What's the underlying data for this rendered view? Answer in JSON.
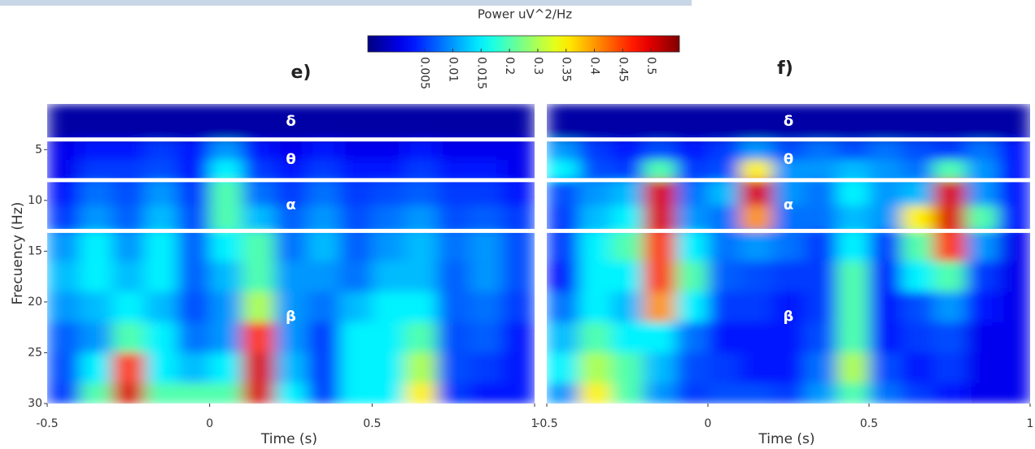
{
  "colorbar": {
    "title": "Power uV^2/Hz",
    "clim": [
      0,
      0.6
    ],
    "ticks": [
      0.005,
      0.01,
      0.015,
      0.2,
      0.3,
      0.35,
      0.4,
      0.45,
      0.5
    ]
  },
  "chart_data": [
    {
      "type": "heatmap",
      "title": "e)",
      "xlabel": "Time (s)",
      "ylabel": "Frecuency (Hz)",
      "xlim": [
        -0.5,
        1
      ],
      "ylim": [
        0.5,
        30
      ],
      "xticks": [
        -0.5,
        0,
        0.5,
        1
      ],
      "yticks": [
        5,
        10,
        15,
        20,
        25,
        30
      ],
      "bands": [
        {
          "label": "δ",
          "range": [
            0.5,
            4
          ]
        },
        {
          "label": "θ",
          "range": [
            4,
            8
          ]
        },
        {
          "label": "α",
          "range": [
            8,
            13
          ]
        },
        {
          "label": "β",
          "range": [
            13,
            30
          ]
        }
      ],
      "x_bins": [
        -0.5,
        -0.4,
        -0.3,
        -0.2,
        -0.1,
        0,
        0.1,
        0.2,
        0.3,
        0.4,
        0.5,
        0.6,
        0.7,
        0.8,
        0.9,
        1
      ],
      "y_bins": [
        0.5,
        4,
        6,
        8,
        10.5,
        13,
        16,
        19,
        22,
        25,
        28,
        30
      ],
      "values": [
        [
          0.001,
          0.001,
          0.001,
          0.001,
          0.001,
          0.001,
          0.001,
          0.001,
          0.001,
          0.001,
          0.001,
          0.001,
          0.001,
          0.001,
          0.001
        ],
        [
          0.003,
          0.004,
          0.004,
          0.005,
          0.004,
          0.01,
          0.004,
          0.003,
          0.004,
          0.003,
          0.003,
          0.004,
          0.003,
          0.003,
          0.003
        ],
        [
          0.003,
          0.005,
          0.005,
          0.006,
          0.004,
          0.015,
          0.005,
          0.004,
          0.005,
          0.004,
          0.004,
          0.005,
          0.004,
          0.004,
          0.003
        ],
        [
          0.004,
          0.008,
          0.006,
          0.01,
          0.005,
          0.2,
          0.008,
          0.005,
          0.008,
          0.005,
          0.006,
          0.007,
          0.005,
          0.005,
          0.004
        ],
        [
          0.005,
          0.01,
          0.007,
          0.012,
          0.006,
          0.2,
          0.012,
          0.007,
          0.01,
          0.006,
          0.008,
          0.01,
          0.006,
          0.007,
          0.005
        ],
        [
          0.01,
          0.015,
          0.01,
          0.015,
          0.007,
          0.015,
          0.2,
          0.008,
          0.012,
          0.007,
          0.01,
          0.012,
          0.008,
          0.01,
          0.006
        ],
        [
          0.012,
          0.015,
          0.012,
          0.015,
          0.007,
          0.012,
          0.2,
          0.01,
          0.01,
          0.008,
          0.012,
          0.012,
          0.007,
          0.01,
          0.006
        ],
        [
          0.01,
          0.012,
          0.015,
          0.012,
          0.006,
          0.01,
          0.3,
          0.01,
          0.008,
          0.012,
          0.015,
          0.015,
          0.007,
          0.008,
          0.005
        ],
        [
          0.007,
          0.01,
          0.2,
          0.015,
          0.008,
          0.01,
          0.45,
          0.01,
          0.005,
          0.015,
          0.015,
          0.2,
          0.006,
          0.007,
          0.004
        ],
        [
          0.006,
          0.015,
          0.45,
          0.015,
          0.012,
          0.015,
          0.5,
          0.012,
          0.005,
          0.015,
          0.015,
          0.3,
          0.006,
          0.005,
          0.004
        ],
        [
          0.005,
          0.2,
          0.5,
          0.2,
          0.2,
          0.2,
          0.5,
          0.015,
          0.005,
          0.015,
          0.015,
          0.35,
          0.005,
          0.004,
          0.004
        ]
      ]
    },
    {
      "type": "heatmap",
      "title": "f)",
      "xlabel": "Time (s)",
      "xlim": [
        -0.5,
        1
      ],
      "ylim": [
        0.5,
        30
      ],
      "xticks": [
        -0.5,
        0,
        0.5,
        1
      ],
      "bands": [
        {
          "label": "δ",
          "range": [
            0.5,
            4
          ]
        },
        {
          "label": "θ",
          "range": [
            4,
            8
          ]
        },
        {
          "label": "α",
          "range": [
            8,
            13
          ]
        },
        {
          "label": "β",
          "range": [
            13,
            30
          ]
        }
      ],
      "x_bins": [
        -0.5,
        -0.4,
        -0.3,
        -0.2,
        -0.1,
        0,
        0.1,
        0.2,
        0.3,
        0.4,
        0.5,
        0.6,
        0.7,
        0.8,
        0.9,
        1
      ],
      "y_bins": [
        0.5,
        4,
        6,
        8,
        10.5,
        13,
        16,
        19,
        22,
        25,
        28,
        30
      ],
      "values": [
        [
          0.001,
          0.001,
          0.001,
          0.001,
          0.001,
          0.001,
          0.001,
          0.001,
          0.001,
          0.001,
          0.001,
          0.001,
          0.001,
          0.001,
          0.001
        ],
        [
          0.01,
          0.005,
          0.004,
          0.006,
          0.004,
          0.005,
          0.01,
          0.006,
          0.008,
          0.006,
          0.008,
          0.006,
          0.005,
          0.008,
          0.004
        ],
        [
          0.015,
          0.006,
          0.005,
          0.2,
          0.005,
          0.006,
          0.35,
          0.01,
          0.01,
          0.012,
          0.01,
          0.008,
          0.2,
          0.01,
          0.004
        ],
        [
          0.006,
          0.01,
          0.012,
          0.5,
          0.008,
          0.012,
          0.5,
          0.01,
          0.008,
          0.015,
          0.01,
          0.012,
          0.5,
          0.01,
          0.004
        ],
        [
          0.005,
          0.012,
          0.015,
          0.5,
          0.01,
          0.008,
          0.4,
          0.008,
          0.008,
          0.012,
          0.01,
          0.35,
          0.5,
          0.2,
          0.004
        ],
        [
          0.005,
          0.015,
          0.2,
          0.45,
          0.015,
          0.008,
          0.01,
          0.008,
          0.005,
          0.015,
          0.005,
          0.2,
          0.45,
          0.01,
          0.003
        ],
        [
          0.004,
          0.015,
          0.015,
          0.45,
          0.2,
          0.007,
          0.006,
          0.005,
          0.005,
          0.2,
          0.004,
          0.015,
          0.2,
          0.005,
          0.003
        ],
        [
          0.008,
          0.015,
          0.012,
          0.4,
          0.015,
          0.005,
          0.005,
          0.004,
          0.005,
          0.2,
          0.004,
          0.006,
          0.01,
          0.004,
          0.003
        ],
        [
          0.012,
          0.2,
          0.015,
          0.015,
          0.008,
          0.004,
          0.004,
          0.004,
          0.006,
          0.2,
          0.004,
          0.005,
          0.006,
          0.003,
          0.003
        ],
        [
          0.015,
          0.3,
          0.2,
          0.012,
          0.006,
          0.005,
          0.004,
          0.004,
          0.008,
          0.3,
          0.006,
          0.004,
          0.005,
          0.003,
          0.003
        ],
        [
          0.01,
          0.35,
          0.2,
          0.01,
          0.005,
          0.006,
          0.006,
          0.005,
          0.01,
          0.2,
          0.008,
          0.005,
          0.004,
          0.003,
          0.003
        ]
      ]
    }
  ]
}
